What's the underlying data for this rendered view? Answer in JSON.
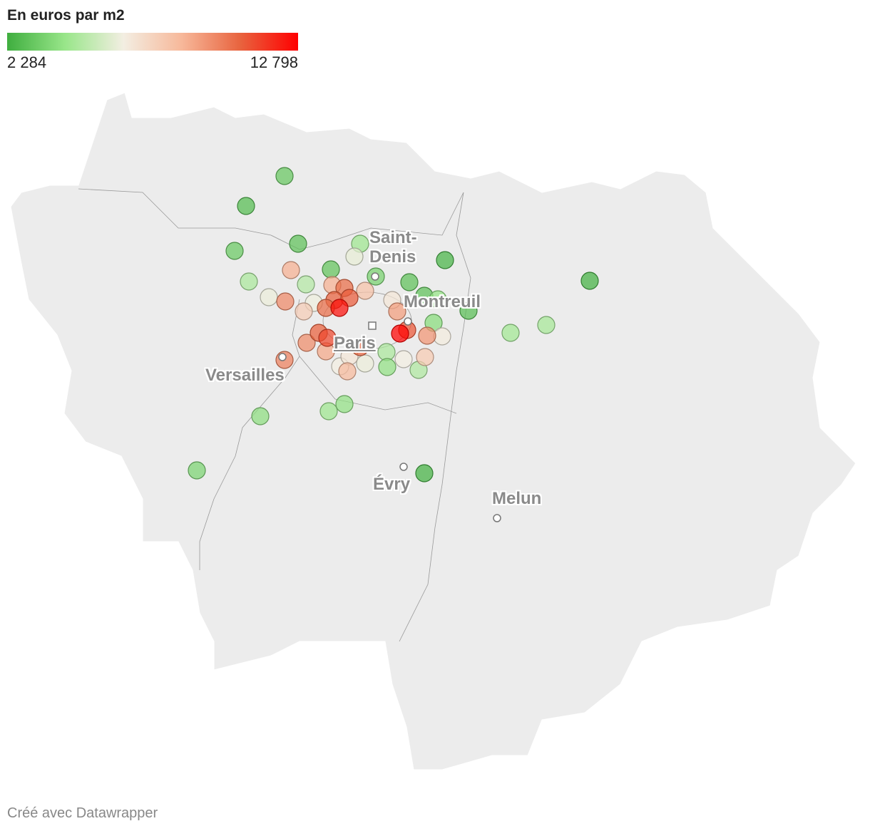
{
  "legend": {
    "title": "En euros par m2",
    "min": {
      "value": 2284,
      "label": "2 284"
    },
    "max": {
      "value": 12798,
      "label": "12 798"
    },
    "colors": [
      "#3fae3f",
      "#99e68a",
      "#f3eee2",
      "#f7b89a",
      "#e8643f",
      "#ff0000"
    ]
  },
  "cities": [
    {
      "label": "Saint-Denis"
    },
    {
      "label": "Montreuil"
    },
    {
      "label": "Paris"
    },
    {
      "label": "Versailles"
    },
    {
      "label": "Évry"
    },
    {
      "label": "Melun"
    }
  ],
  "points": {
    "values": [
      3200,
      2800,
      3000,
      3300,
      3100,
      3000,
      2500,
      2400,
      3000,
      2900,
      2400,
      4500,
      4800,
      5000,
      4600,
      4700,
      4000,
      4800,
      4200,
      4900,
      4100,
      4500,
      4200,
      3700,
      4300,
      3600,
      6200,
      6300,
      6400,
      6800,
      6600,
      6500,
      6300,
      6500,
      6800,
      8800,
      9800,
      7800,
      8200,
      8800,
      7900,
      9500,
      9300,
      9700,
      9000,
      8500,
      10500,
      10800,
      10900,
      10500,
      12500,
      10800,
      11300,
      10600,
      11000,
      12798,
      10000
    ]
  },
  "footer": "Créé avec Datawrapper"
}
